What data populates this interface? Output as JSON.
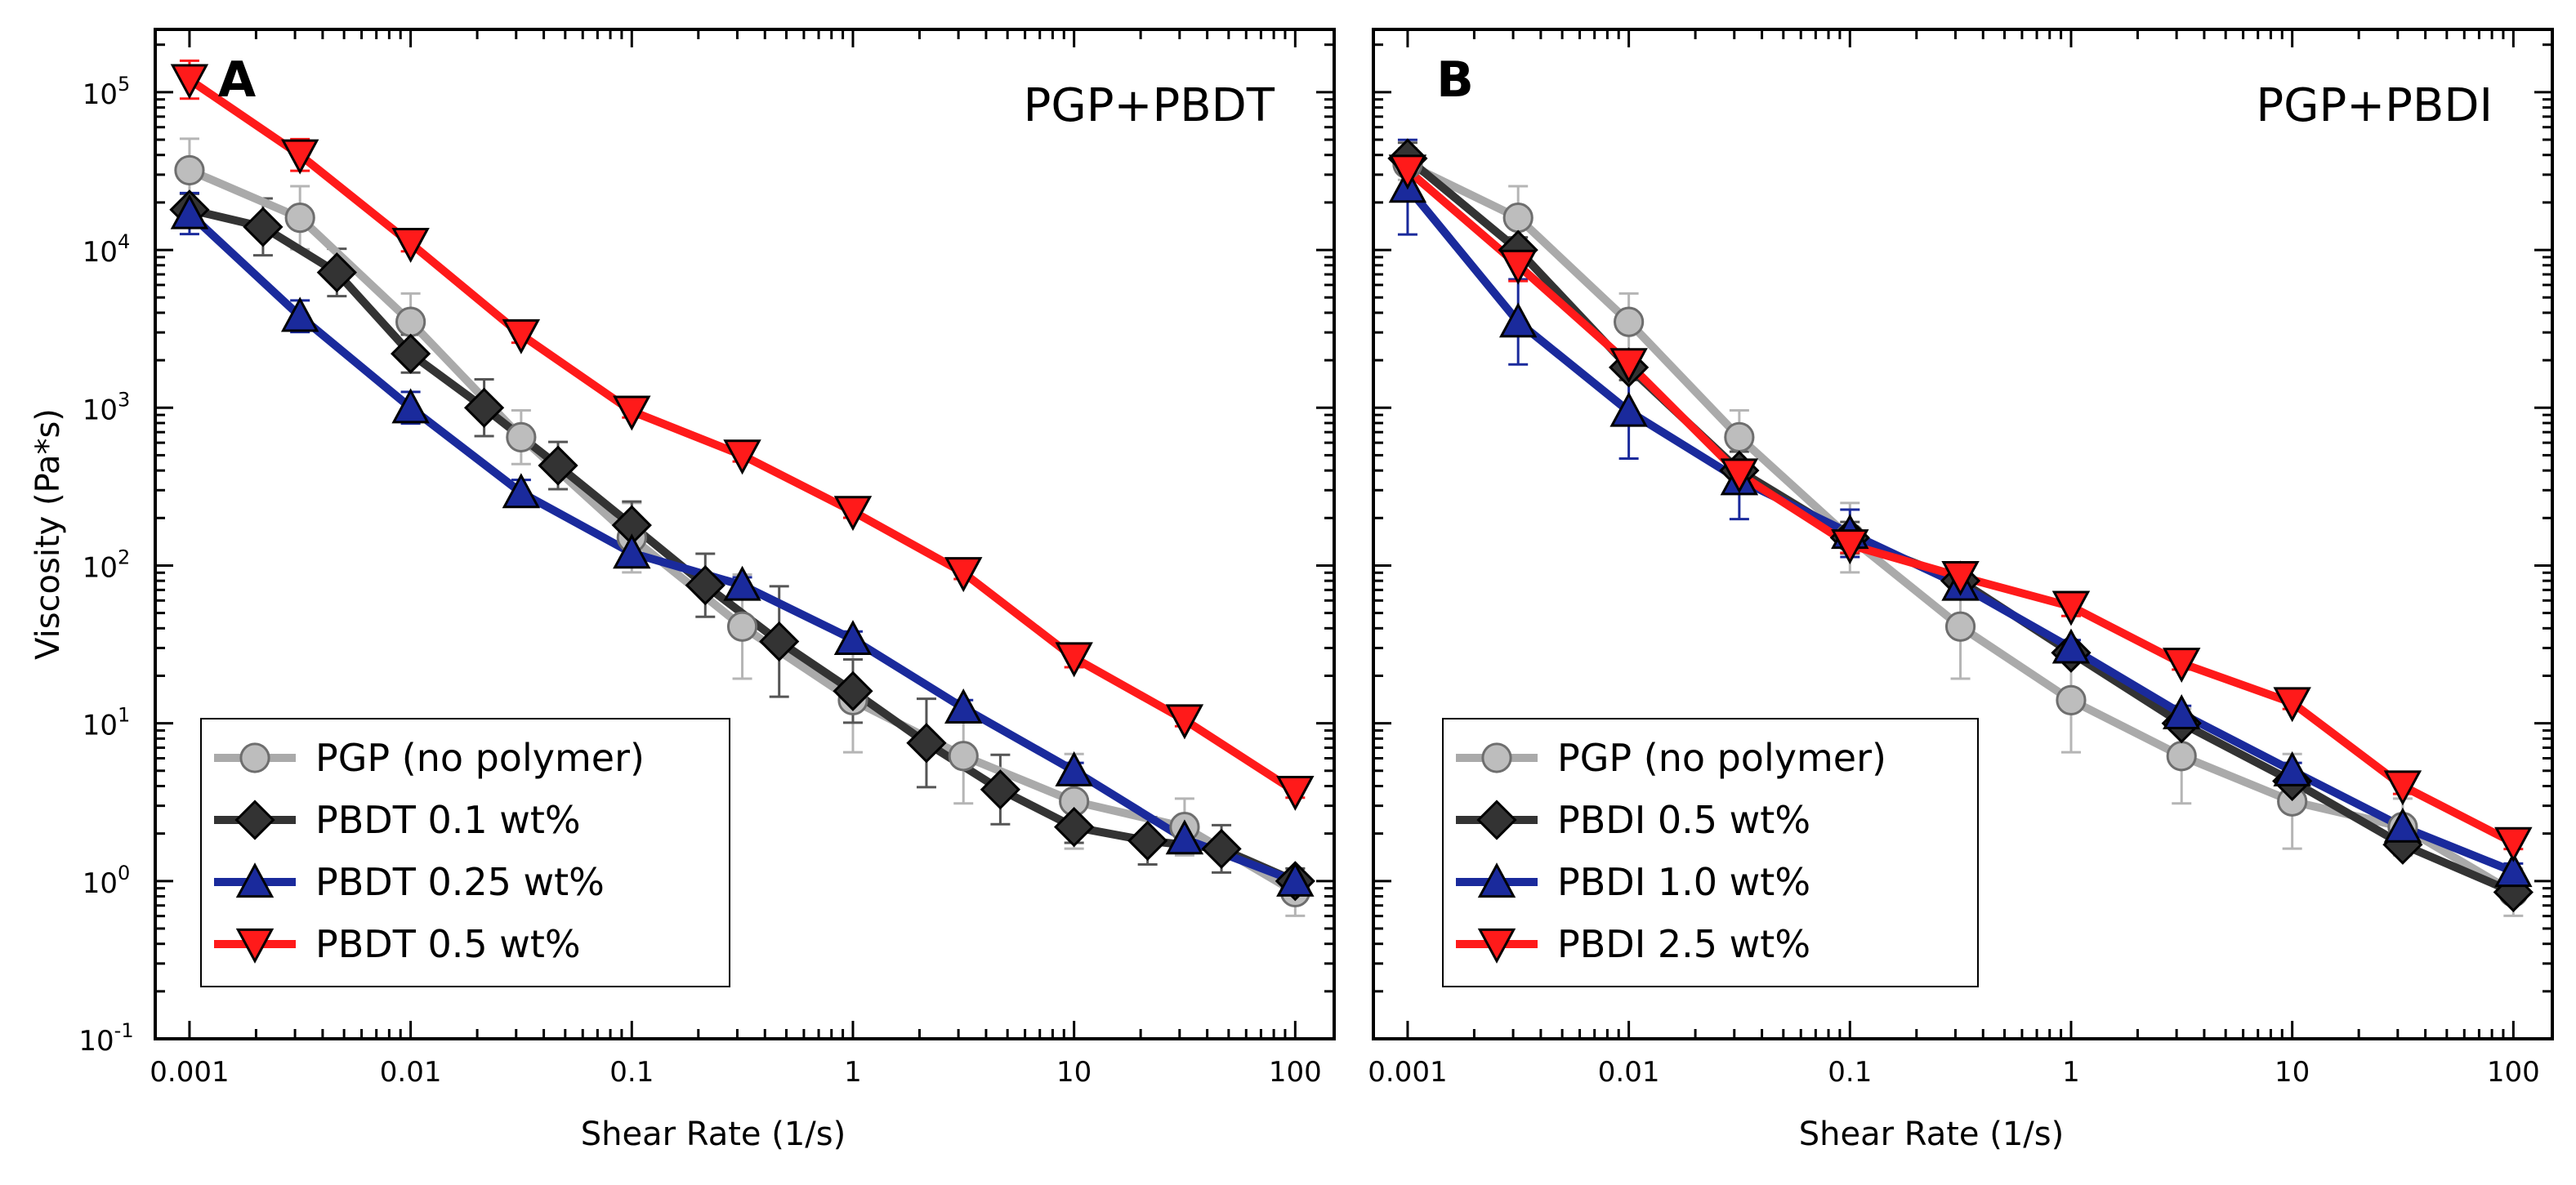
{
  "chart_data": [
    {
      "type": "line",
      "panel": "A",
      "title": "PGP+PBDT",
      "xlabel": "Shear Rate (1/s)",
      "ylabel": "Viscosity (Pa*s)",
      "xscale": "log",
      "yscale": "log",
      "xlim": [
        0.0007,
        150
      ],
      "ylim": [
        0.1,
        250000
      ],
      "xticks": [
        {
          "v": 0.001,
          "label": "0.001"
        },
        {
          "v": 0.01,
          "label": "0.01"
        },
        {
          "v": 0.1,
          "label": "0.1"
        },
        {
          "v": 1,
          "label": "1"
        },
        {
          "v": 10,
          "label": "10"
        },
        {
          "v": 100,
          "label": "100"
        }
      ],
      "yticks": [
        {
          "v": 0.1,
          "base": "10",
          "exp": "-1"
        },
        {
          "v": 1,
          "base": "10",
          "exp": "0"
        },
        {
          "v": 10,
          "base": "10",
          "exp": "1"
        },
        {
          "v": 100,
          "base": "10",
          "exp": "2"
        },
        {
          "v": 1000,
          "base": "10",
          "exp": "3"
        },
        {
          "v": 10000,
          "base": "10",
          "exp": "4"
        },
        {
          "v": 100000,
          "base": "10",
          "exp": "5"
        }
      ],
      "legend_position": "bottom-left",
      "series": [
        {
          "name": "PGP (no polymer)",
          "marker": "circle",
          "color": "#aaaaaa",
          "fill": "#bdbdbd",
          "ecolor": "#b5b5b5",
          "x": [
            0.001,
            0.00316,
            0.01,
            0.0316,
            0.1,
            0.316,
            1,
            3.16,
            10,
            31.6,
            100
          ],
          "y": [
            32000,
            16000,
            3500,
            650,
            150,
            41,
            14,
            6.2,
            3.2,
            2.2,
            0.85
          ],
          "err": [
            0.2,
            0.2,
            0.18,
            0.17,
            0.22,
            0.33,
            0.33,
            0.3,
            0.3,
            0.18,
            0.15
          ]
        },
        {
          "name": "PBDT 0.1 wt%",
          "marker": "diamond",
          "color": "#333333",
          "fill": "#333333",
          "ecolor": "#555555",
          "x": [
            0.001,
            0.00215,
            0.00464,
            0.01,
            0.0215,
            0.0464,
            0.1,
            0.215,
            0.464,
            1,
            2.15,
            4.64,
            10,
            21.5,
            46.4,
            100
          ],
          "y": [
            18000,
            14000,
            7200,
            2200,
            1000,
            430,
            180,
            75,
            33,
            16,
            7.5,
            3.8,
            2.2,
            1.8,
            1.6,
            1.0
          ],
          "err": [
            0.1,
            0.18,
            0.15,
            0.12,
            0.18,
            0.15,
            0.15,
            0.2,
            0.35,
            0.2,
            0.28,
            0.22,
            0.1,
            0.15,
            0.15,
            0.08
          ]
        },
        {
          "name": "PBDT 0.25 wt%",
          "marker": "triangle-up",
          "color": "#1a2a9c",
          "fill": "#1a2a9c",
          "ecolor": "#1a2a9c",
          "x": [
            0.001,
            0.00316,
            0.01,
            0.0316,
            0.1,
            0.316,
            1,
            3.16,
            10,
            31.6,
            100
          ],
          "y": [
            17000,
            3800,
            1000,
            290,
            120,
            75,
            34,
            12.5,
            5.0,
            1.85,
            1.0
          ],
          "err": [
            0.13,
            0.1,
            0.1,
            0.08,
            0.08,
            0.05,
            0.05,
            0.05,
            0.05,
            0.05,
            0.05
          ]
        },
        {
          "name": "PBDT 0.5 wt%",
          "marker": "triangle-down",
          "color": "#ff1a1a",
          "fill": "#ff1a1a",
          "ecolor": "#ff1a1a",
          "x": [
            0.001,
            0.00316,
            0.01,
            0.0316,
            0.1,
            0.316,
            1,
            3.16,
            10,
            31.6,
            100
          ],
          "y": [
            120000,
            40000,
            11000,
            2900,
            950,
            500,
            220,
            90,
            26,
            10.5,
            3.7
          ],
          "err": [
            0.12,
            0.1,
            0.05,
            0.05,
            0.04,
            0.04,
            0.04,
            0.04,
            0.06,
            0.04,
            0.04
          ]
        }
      ]
    },
    {
      "type": "line",
      "panel": "B",
      "title": "PGP+PBDI",
      "xlabel": "Shear Rate (1/s)",
      "ylabel": "",
      "xscale": "log",
      "yscale": "log",
      "xlim": [
        0.0007,
        150
      ],
      "ylim": [
        0.1,
        250000
      ],
      "xticks": [
        {
          "v": 0.001,
          "label": "0.001"
        },
        {
          "v": 0.01,
          "label": "0.01"
        },
        {
          "v": 0.1,
          "label": "0.1"
        },
        {
          "v": 1,
          "label": "1"
        },
        {
          "v": 10,
          "label": "10"
        },
        {
          "v": 100,
          "label": "100"
        }
      ],
      "yticks": [],
      "legend_position": "bottom-left",
      "series": [
        {
          "name": "PGP (no polymer)",
          "marker": "circle",
          "color": "#aaaaaa",
          "fill": "#bdbdbd",
          "ecolor": "#b5b5b5",
          "x": [
            0.001,
            0.00316,
            0.01,
            0.0316,
            0.1,
            0.316,
            1,
            3.16,
            10,
            31.6,
            100
          ],
          "y": [
            35000,
            16000,
            3500,
            650,
            150,
            41,
            14,
            6.2,
            3.2,
            2.2,
            0.85
          ],
          "err": [
            0.1,
            0.2,
            0.18,
            0.17,
            0.22,
            0.33,
            0.33,
            0.3,
            0.3,
            0.18,
            0.15
          ]
        },
        {
          "name": "PBDI 0.5 wt%",
          "marker": "diamond",
          "color": "#333333",
          "fill": "#333333",
          "ecolor": "#555555",
          "x": [
            0.001,
            0.00316,
            0.01,
            0.0316,
            0.1,
            0.316,
            1,
            3.16,
            10,
            31.6,
            100
          ],
          "y": [
            38000,
            10000,
            1800,
            400,
            150,
            80,
            28,
            10,
            4.3,
            1.7,
            0.85
          ],
          "err": [
            0.1,
            0.08,
            0.08,
            0.12,
            0.1,
            0.05,
            0.05,
            0.05,
            0.05,
            0.05,
            0.05
          ]
        },
        {
          "name": "PBDI 1.0 wt%",
          "marker": "triangle-up",
          "color": "#1a2a9c",
          "fill": "#1a2a9c",
          "ecolor": "#1a2a9c",
          "x": [
            0.001,
            0.00316,
            0.01,
            0.0316,
            0.1,
            0.316,
            1,
            3.16,
            10,
            31.6,
            100
          ],
          "y": [
            25000,
            3500,
            950,
            350,
            160,
            75,
            30,
            11.5,
            5.0,
            2.2,
            1.15
          ],
          "err": [
            0.3,
            0.27,
            0.3,
            0.25,
            0.15,
            0.05,
            0.05,
            0.05,
            0.05,
            0.05,
            0.05
          ]
        },
        {
          "name": "PBDI 2.5 wt%",
          "marker": "triangle-down",
          "color": "#ff1a1a",
          "fill": "#ff1a1a",
          "ecolor": "#ff1a1a",
          "x": [
            0.001,
            0.00316,
            0.01,
            0.0316,
            0.1,
            0.316,
            1,
            3.16,
            10,
            31.6,
            100
          ],
          "y": [
            32000,
            8000,
            1900,
            380,
            135,
            85,
            55,
            24,
            13.5,
            4.0,
            1.75
          ],
          "err": [
            0.12,
            0.1,
            0.06,
            0.06,
            0.05,
            0.04,
            0.06,
            0.04,
            0.04,
            0.05,
            0.04
          ]
        }
      ]
    }
  ]
}
